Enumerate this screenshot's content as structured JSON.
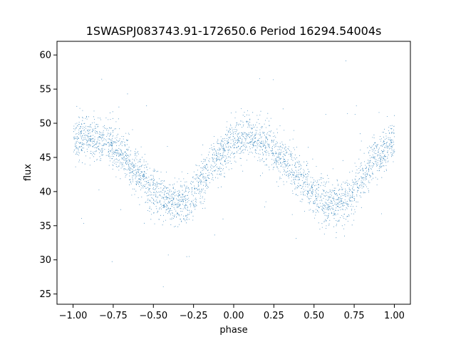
{
  "chart_data": {
    "type": "scatter",
    "title": "1SWASPJ083743.91-172650.6 Period 16294.54004s",
    "xlabel": "phase",
    "ylabel": "flux",
    "xlim": [
      -1.1,
      1.1
    ],
    "ylim": [
      23.5,
      62
    ],
    "xticks": [
      -1.0,
      -0.75,
      -0.5,
      -0.25,
      0.0,
      0.25,
      0.5,
      0.75,
      1.0
    ],
    "xtick_labels": [
      "−1.00",
      "−0.75",
      "−0.50",
      "−0.25",
      "0.00",
      "0.25",
      "0.50",
      "0.75",
      "1.00"
    ],
    "yticks": [
      25,
      30,
      35,
      40,
      45,
      50,
      55,
      60
    ],
    "ytick_labels": [
      "25",
      "30",
      "35",
      "40",
      "45",
      "50",
      "55",
      "60"
    ],
    "grid": false,
    "color": "#1f77b4",
    "series": [
      {
        "x_range": [
          -1.0,
          1.0
        ],
        "approx_points": 14000,
        "trend": {
          "phase": [
            -1.0,
            -0.9,
            -0.8,
            -0.7,
            -0.6,
            -0.5,
            -0.4,
            -0.35,
            -0.3,
            -0.2,
            -0.1,
            0.0,
            0.1,
            0.2,
            0.3,
            0.4,
            0.5,
            0.6,
            0.65,
            0.7,
            0.8,
            0.9,
            1.0
          ],
          "flux": [
            47.8,
            48.0,
            47.3,
            45.3,
            42.8,
            40.0,
            38.4,
            38.1,
            38.6,
            41.5,
            45.0,
            47.6,
            48.0,
            47.2,
            45.0,
            42.3,
            39.6,
            38.3,
            38.1,
            38.7,
            41.8,
            45.2,
            47.8
          ]
        },
        "scatter_width": 1.6
      }
    ]
  }
}
